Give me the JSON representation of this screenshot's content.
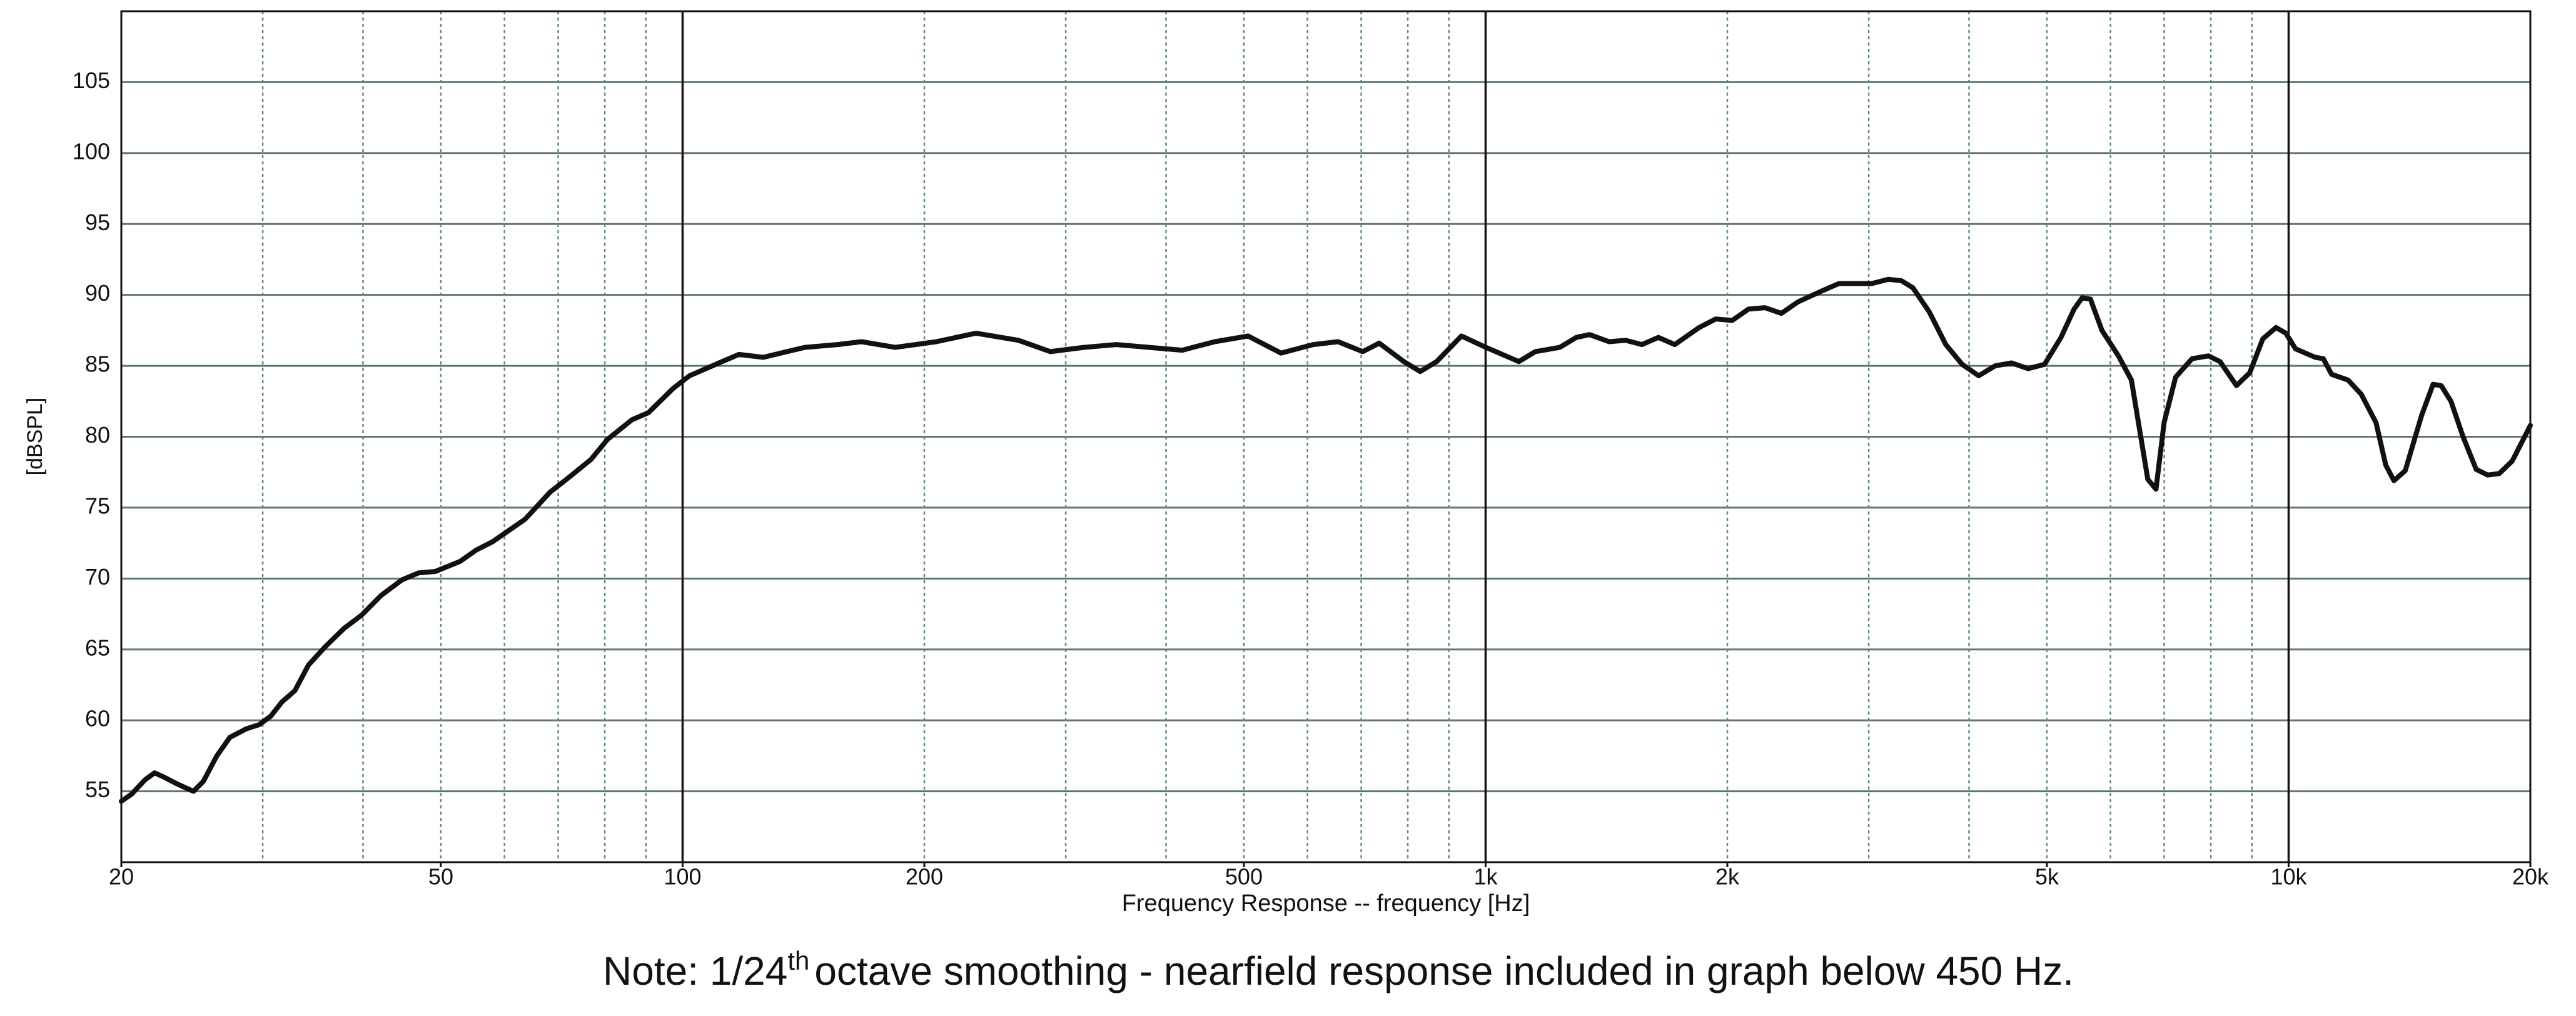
{
  "chart_data": {
    "type": "line",
    "x_label": "Frequency Response -- frequency [Hz]",
    "y_label": "[dBSPL]",
    "note": {
      "before": "Note: 1/24",
      "superscript": "th",
      "after": "octave smoothing - nearfield response included in graph below 450 Hz."
    },
    "log_x": true,
    "xlim": [
      20,
      20000
    ],
    "ylim": [
      50,
      110
    ],
    "xticks": [
      20,
      50,
      100,
      200,
      500,
      {
        "value": 1000,
        "label": "1k"
      },
      {
        "value": 2000,
        "label": "2k"
      },
      {
        "value": 5000,
        "label": "5k"
      },
      {
        "value": 10000,
        "label": "10k"
      },
      {
        "value": 20000,
        "label": "20k"
      }
    ],
    "yticks": [
      55,
      60,
      65,
      70,
      75,
      80,
      85,
      90,
      95,
      100,
      105
    ],
    "x_gridlines": [
      30,
      40,
      50,
      60,
      70,
      80,
      90,
      100,
      200,
      300,
      400,
      500,
      600,
      700,
      800,
      900,
      1000,
      2000,
      3000,
      4000,
      5000,
      6000,
      7000,
      8000,
      9000,
      10000
    ],
    "grid": true,
    "color": "#111111",
    "x": [
      20,
      20.6,
      21.4,
      22,
      22.6,
      23.5,
      24.6,
      25.3,
      26.3,
      27.3,
      28.6,
      29.7,
      30.7,
      31.7,
      32.9,
      34.2,
      35.9,
      37.9,
      39.8,
      42.1,
      44.7,
      46.9,
      49.2,
      52.8,
      55.3,
      58,
      60.8,
      63.7,
      68.4,
      71.7,
      76.9,
      80.6,
      86.5,
      90.7,
      97.3,
      102,
      112,
      117.5,
      126,
      142,
      156,
      167,
      184,
      207,
      232,
      262,
      287,
      316,
      347,
      381,
      419,
      460,
      506,
      556,
      610,
      655,
      703,
      737,
      791,
      829,
      869,
      933,
      1001,
      1100,
      1153,
      1237,
      1297,
      1347,
      1425,
      1494,
      1566,
      1641,
      1720,
      1845,
      1934,
      2028,
      2125,
      2228,
      2335,
      2448,
      2627,
      2754,
      3027,
      3173,
      3295,
      3405,
      3569,
      3742,
      3922,
      4112,
      4311,
      4519,
      4737,
      4966,
      5206,
      5405,
      5533,
      5665,
      5855,
      6138,
      6371,
      6523,
      6678,
      6837,
      6998,
      7233,
      7582,
      7948,
      8215,
      8611,
      8943,
      9287,
      9645,
      9920,
      10200,
      10792,
      11047,
      11311,
      11858,
      12314,
      12847,
      13213,
      13526,
      13970,
      14643,
      15133,
      15487,
      15929,
      16491,
      17122,
      17696,
      18290,
      18992,
      20000
    ],
    "values": [
      54.3,
      54.8,
      55.8,
      56.3,
      56.0,
      55.5,
      55.0,
      55.7,
      57.5,
      58.8,
      59.4,
      59.7,
      60.3,
      61.3,
      62.1,
      63.9,
      65.2,
      66.5,
      67.4,
      68.8,
      69.9,
      70.4,
      70.5,
      71.2,
      72.0,
      72.6,
      73.4,
      74.2,
      76.1,
      77.0,
      78.4,
      79.8,
      81.2,
      81.7,
      83.4,
      84.3,
      85.3,
      85.8,
      85.6,
      86.3,
      86.5,
      86.7,
      86.3,
      86.7,
      87.3,
      86.8,
      86.0,
      86.3,
      86.5,
      86.3,
      86.1,
      86.7,
      87.1,
      85.9,
      86.5,
      86.7,
      86.0,
      86.6,
      85.3,
      84.6,
      85.3,
      87.1,
      86.3,
      85.3,
      86.0,
      86.3,
      87.0,
      87.2,
      86.7,
      86.8,
      86.5,
      87.0,
      86.5,
      87.7,
      88.3,
      88.2,
      89.0,
      89.1,
      88.7,
      89.5,
      90.3,
      90.8,
      90.8,
      91.1,
      91.0,
      90.5,
      88.8,
      86.5,
      85.1,
      84.3,
      85.0,
      85.2,
      84.8,
      85.1,
      87.0,
      89.0,
      89.8,
      89.7,
      87.5,
      85.7,
      84.0,
      80.5,
      77.0,
      76.3,
      81.0,
      84.2,
      85.5,
      85.7,
      85.3,
      83.6,
      84.5,
      86.9,
      87.7,
      87.3,
      86.2,
      85.6,
      85.5,
      84.4,
      84.0,
      83.0,
      81.0,
      78.0,
      76.9,
      77.6,
      81.5,
      83.7,
      83.6,
      82.5,
      80.0,
      77.7,
      77.3,
      77.4,
      78.3,
      80.8
    ]
  }
}
